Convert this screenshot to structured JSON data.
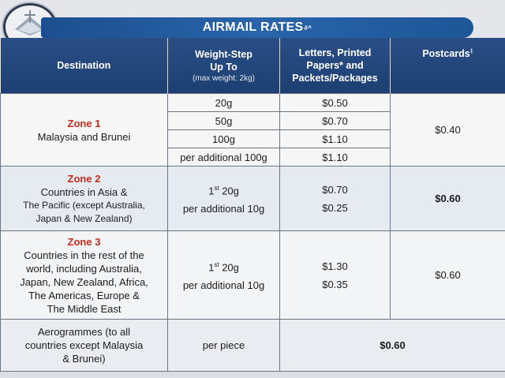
{
  "title": "AIRMAIL RATES",
  "title_marks": "#^",
  "logo_icon": "postal-emblem-icon",
  "headers": {
    "destination": "Destination",
    "weight_line1": "Weight-Step",
    "weight_line2": "Up To",
    "weight_sub": "(max weight: 2kg)",
    "letters_line1": "Letters, Printed",
    "letters_line2": "Papers* and",
    "letters_line3": "Packets/Packages",
    "postcards": "Postcards",
    "postcards_mark": "‡"
  },
  "zone1": {
    "name": "Zone 1",
    "countries": "Malaysia and Brunei",
    "steps": [
      "20g",
      "50g",
      "100g",
      "per additional 100g"
    ],
    "letters": [
      "$0.50",
      "$0.70",
      "$1.10",
      "$1.10"
    ],
    "postcards": "$0.40"
  },
  "zone2": {
    "name": "Zone 2",
    "countries_line1": "Countries in Asia &",
    "countries_line2": "The Pacific (except Australia,",
    "countries_line3": "Japan & New Zealand)",
    "step1_num": "1",
    "step1_sup": "st",
    "step1_rest": " 20g",
    "step2": "per additional 10g",
    "letters": [
      "$0.70",
      "$0.25"
    ],
    "postcards": "$0.60"
  },
  "zone3": {
    "name": "Zone 3",
    "countries_line1": "Countries in the rest of the",
    "countries_line2": "world, including Australia,",
    "countries_line3": "Japan, New Zealand, Africa,",
    "countries_line4": "The Americas, Europe &",
    "countries_line5": "The Middle East",
    "step1_num": "1",
    "step1_sup": "st",
    "step1_rest": " 20g",
    "step2": "per additional 10g",
    "letters": [
      "$1.30",
      "$0.35"
    ],
    "postcards": "$0.60"
  },
  "aerogrammes": {
    "label_line1": "Aerogrammes (to all",
    "label_line2": "countries except Malaysia",
    "label_line3": "& Brunei)",
    "step": "per piece",
    "price": "$0.60"
  },
  "colors": {
    "header_blue": "#1d3f72",
    "title_blue": "#2a64aa",
    "zone_red": "#c62a1d"
  }
}
